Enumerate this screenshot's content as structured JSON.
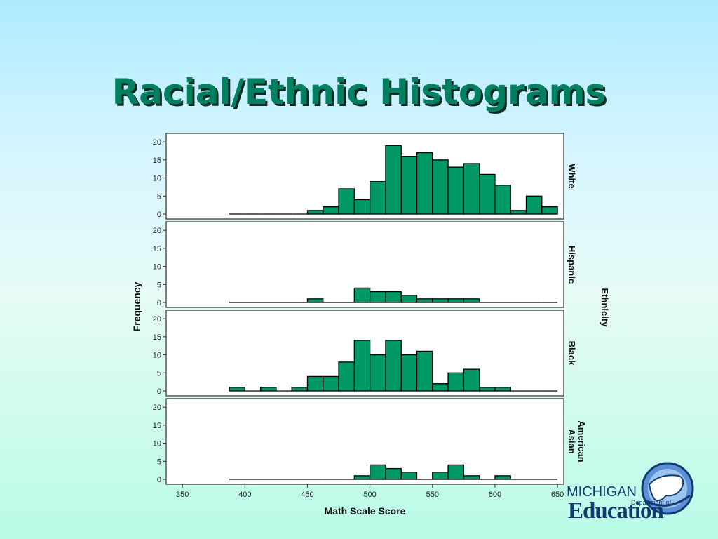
{
  "slide": {
    "title": "Racial/Ethnic Histograms"
  },
  "logo": {
    "line1": "MICHIGAN",
    "line2": "Department of",
    "line3": "Education"
  },
  "colors": {
    "bar_fill": "#009966",
    "bar_stroke": "#000000",
    "title": "#008060",
    "logo": "#123a6e"
  },
  "chart_data": {
    "type": "bar",
    "subtype": "faceted-histogram",
    "xlabel": "Math Scale Score",
    "ylabel": "Frequency",
    "facet_label": "Ethnicity",
    "x_ticks": [
      350,
      400,
      450,
      500,
      550,
      600,
      650
    ],
    "xlim": [
      337,
      655
    ],
    "y_ticks": [
      0,
      5,
      10,
      15,
      20
    ],
    "ylim": [
      0,
      21
    ],
    "bin_width": 12.5,
    "bin_start": 387.5,
    "panels": [
      {
        "name": "White",
        "counts": [
          0,
          0,
          0,
          0,
          0,
          1,
          2,
          7,
          4,
          9,
          19,
          16,
          17,
          15,
          13,
          14,
          11,
          8,
          1,
          5,
          2
        ]
      },
      {
        "name": "Hispanic",
        "counts": [
          0,
          0,
          0,
          0,
          0,
          1,
          0,
          0,
          4,
          3,
          3,
          2,
          1,
          1,
          1,
          1,
          0,
          0,
          0,
          0,
          0
        ]
      },
      {
        "name": "Black",
        "counts": [
          1,
          0,
          1,
          0,
          1,
          4,
          4,
          8,
          14,
          10,
          14,
          10,
          11,
          2,
          5,
          6,
          1,
          1,
          0,
          0,
          0
        ]
      },
      {
        "name": "Asian American",
        "label_lines": [
          "Asian",
          "American"
        ],
        "counts": [
          0,
          0,
          0,
          0,
          0,
          0,
          0,
          0,
          1,
          4,
          3,
          2,
          0,
          2,
          4,
          1,
          0,
          1,
          0,
          0,
          0
        ]
      }
    ]
  }
}
